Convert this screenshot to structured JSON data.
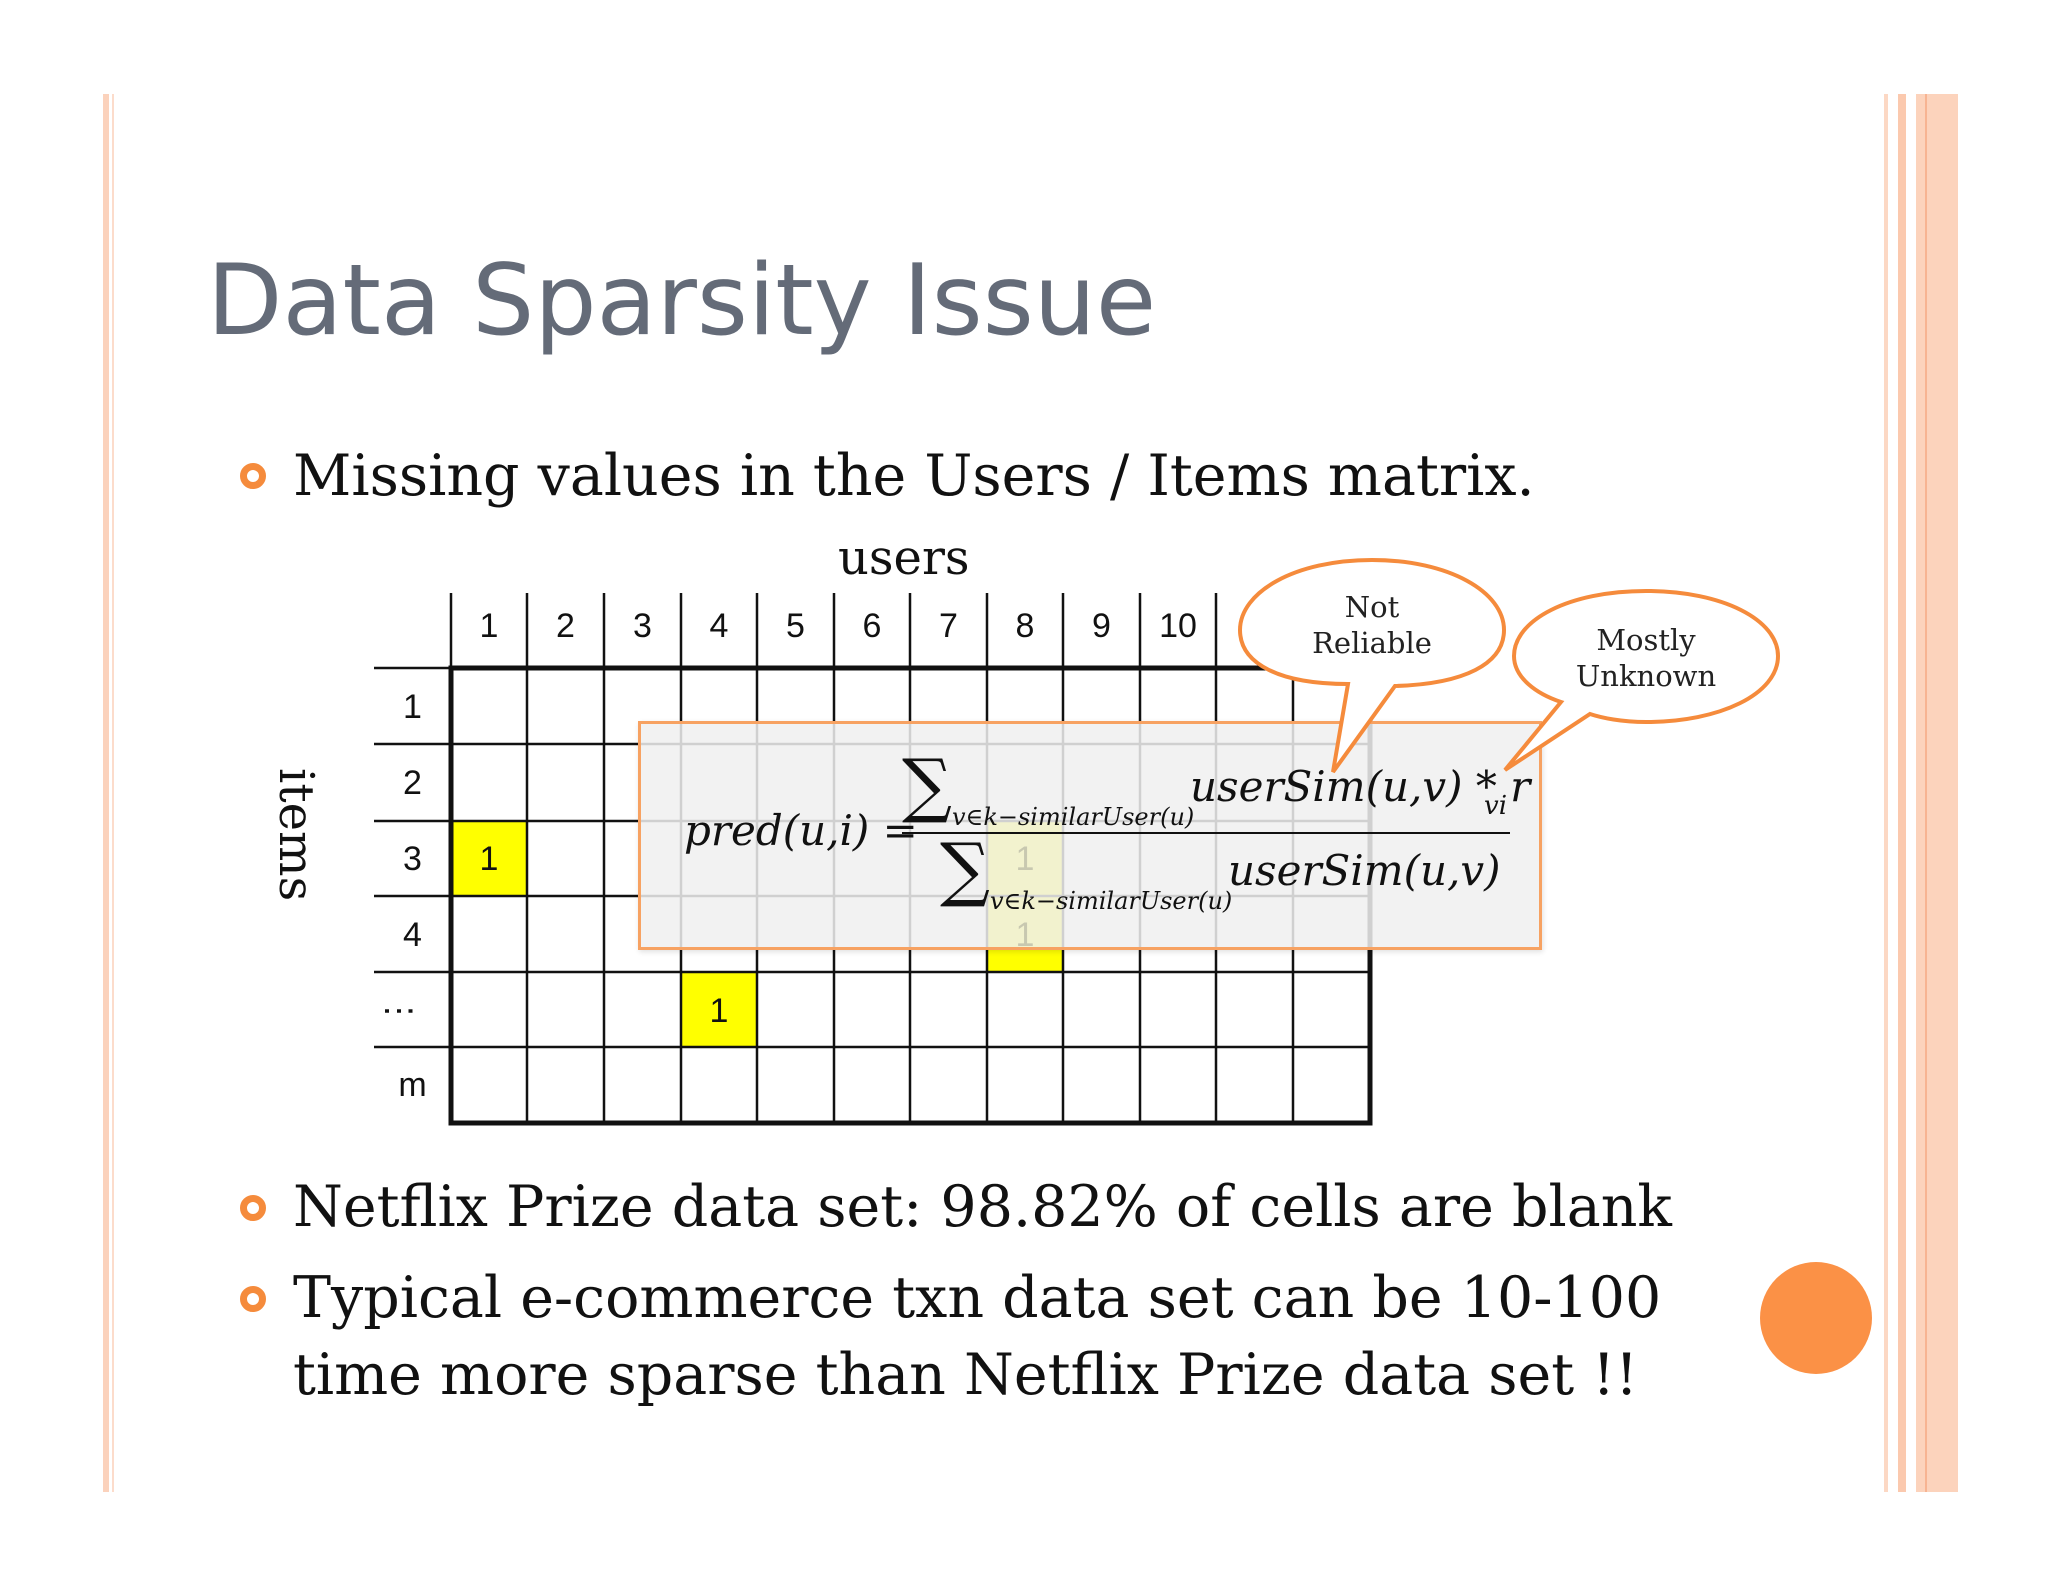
{
  "slide": {
    "title": "Data Sparsity Issue",
    "bullets": [
      "Missing values in the Users / Items matrix.",
      "Netflix Prize data set: 98.82% of cells are blank",
      "Typical e-commerce txn data set can be 10-100",
      "time more sparse than Netflix Prize data set !!"
    ]
  },
  "matrix": {
    "users_label": "users",
    "items_label": "items",
    "user_columns": [
      "1",
      "2",
      "3",
      "4",
      "5",
      "6",
      "7",
      "8",
      "9",
      "10"
    ],
    "item_rows": [
      "1",
      "2",
      "3",
      "4",
      "⋮",
      "m"
    ],
    "filled_cell_value": "1"
  },
  "formula": {
    "lhs": "pred(u,i) =",
    "sum_symbol": "∑",
    "numerator_term": "userSim(u,v) * r",
    "numerator_subscript": "vi",
    "sum_subscript": "v∈k−similarUser(u)",
    "denominator_term": "userSim(u,v)"
  },
  "callouts": {
    "not_reliable": [
      "Not",
      "Reliable"
    ],
    "mostly_unknown": [
      "Mostly",
      "Unknown"
    ]
  },
  "colors": {
    "accent_orange": "#f58b3c",
    "highlight_yellow": "#ffff00",
    "title_gray": "#646b78"
  }
}
